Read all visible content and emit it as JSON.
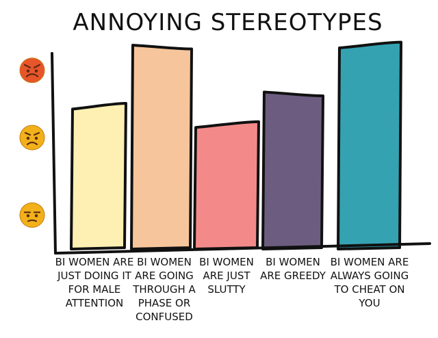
{
  "chart_data": {
    "type": "bar",
    "title": "ANNOYING STEREOTYPES",
    "xlabel": "",
    "ylabel": "",
    "ylim": [
      0,
      10
    ],
    "y_scale_icons": [
      {
        "icon": "angry-face-icon",
        "color": "#e8552b",
        "value": 8.7
      },
      {
        "icon": "frowning-face-icon",
        "color": "#f2b11a",
        "value": 5.4
      },
      {
        "icon": "unamused-face-icon",
        "color": "#f2b11a",
        "value": 1.6
      }
    ],
    "categories": [
      "BI WOMEN ARE JUST DOING IT FOR MALE ATTENTION",
      "BI WOMEN ARE GOING THROUGH A PHASE OR CONFUSED",
      "BI WOMEN ARE JUST SLUTTY",
      "BI WOMEN ARE GREEDY",
      "BI WOMEN ARE ALWAYS GOING TO CHEAT ON YOU"
    ],
    "category_lines": [
      [
        "BI WOMEN ARE",
        "JUST DOING IT",
        "FOR MALE",
        "ATTENTION"
      ],
      [
        "BI WOMEN",
        "ARE GOING",
        "THROUGH A",
        "PHASE OR",
        "CONFUSED"
      ],
      [
        "BI WOMEN",
        "ARE JUST",
        "SLUTTY"
      ],
      [
        "BI WOMEN",
        "ARE GREEDY"
      ],
      [
        "BI WOMEN ARE",
        "ALWAYS GOING",
        "TO CHEAT ON",
        "YOU"
      ]
    ],
    "values": [
      7.0,
      9.8,
      6.1,
      7.5,
      10.0
    ],
    "colors": [
      "#fdf0b2",
      "#f7c59b",
      "#f38a89",
      "#6c5d80",
      "#35a2b2"
    ]
  }
}
